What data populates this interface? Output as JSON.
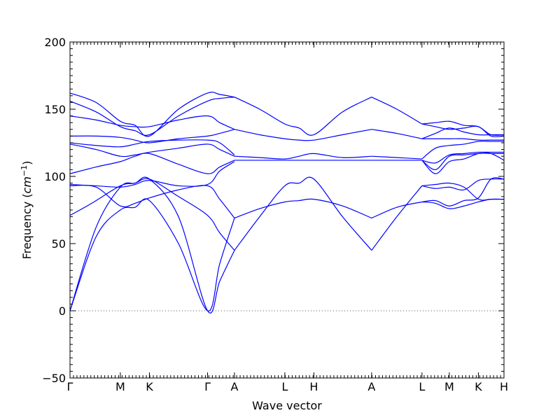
{
  "chart_data": {
    "type": "line",
    "xlabel": "Wave vector",
    "ylabel_main": "Frequency (",
    "ylabel_unit_base": "cm",
    "ylabel_unit_exp": "−1",
    "ylabel_close": ")",
    "xlim": [
      0,
      100
    ],
    "ylim": [
      -50,
      200
    ],
    "ytick_values": [
      -50,
      0,
      50,
      100,
      150,
      200
    ],
    "ytick_labels": [
      "−50",
      "0",
      "50",
      "100",
      "150",
      "200"
    ],
    "xticks": [
      {
        "label": "Γ",
        "x": 0
      },
      {
        "label": "M",
        "x": 11.6
      },
      {
        "label": "K",
        "x": 18.3
      },
      {
        "label": "Γ",
        "x": 31.7
      },
      {
        "label": "A",
        "x": 37.9
      },
      {
        "label": "L",
        "x": 49.5
      },
      {
        "label": "H",
        "x": 56.2
      },
      {
        "label": "A",
        "x": 69.5
      },
      {
        "label": "L",
        "x": 81.1
      },
      {
        "label": "M",
        "x": 87.4
      },
      {
        "label": "K",
        "x": 94.1
      },
      {
        "label": "H",
        "x": 100
      }
    ],
    "zero_line": true,
    "line_color": "#0000ff",
    "series": [
      {
        "x": [
          0,
          6,
          11.6,
          15,
          18.3,
          25,
          31.7,
          34.5,
          37.9
        ],
        "y": [
          0,
          62,
          92,
          95,
          98,
          70,
          0,
          22,
          45
        ]
      },
      {
        "x": [
          0,
          6,
          11.6,
          15,
          18.3,
          25,
          31.7,
          34.5,
          37.9
        ],
        "y": [
          0,
          55,
          75,
          77,
          82,
          50,
          0,
          35,
          69
        ]
      },
      {
        "x": [
          0,
          5,
          11.6,
          15,
          18.3,
          25,
          31.7,
          34.5,
          37.9
        ],
        "y": [
          71,
          80,
          93,
          95,
          98,
          85,
          71,
          58,
          45
        ]
      },
      {
        "x": [
          0,
          6,
          11.6,
          15,
          18.3,
          25,
          31.7,
          34.5,
          37.9
        ],
        "y": [
          93,
          92,
          78,
          80,
          84,
          90,
          93,
          83,
          69
        ]
      },
      {
        "x": [
          0,
          6,
          11.6,
          15,
          18.3,
          25,
          31.7,
          34.5,
          37.9
        ],
        "y": [
          94,
          93,
          92,
          94,
          97,
          93,
          94,
          104,
          111
        ]
      },
      {
        "x": [
          0,
          6,
          11.6,
          15,
          18.3,
          25,
          31.7,
          34.5,
          37.9
        ],
        "y": [
          102,
          107,
          111,
          115,
          117,
          109,
          102,
          107,
          112
        ]
      },
      {
        "x": [
          0,
          6,
          11.6,
          15,
          18.3,
          25,
          31.7,
          34.5,
          37.9
        ],
        "y": [
          124,
          120,
          115,
          116,
          118,
          121,
          124,
          120,
          115
        ]
      },
      {
        "x": [
          0,
          6,
          11.6,
          15,
          18.3,
          25,
          31.7,
          34.5,
          37.9
        ],
        "y": [
          125,
          123,
          122,
          124,
          126,
          127,
          127,
          125,
          116
        ]
      },
      {
        "x": [
          0,
          6,
          11.6,
          15,
          18.3,
          25,
          31.7,
          34.5,
          37.9
        ],
        "y": [
          130,
          130,
          129,
          127,
          125,
          128,
          130,
          132,
          135
        ]
      },
      {
        "x": [
          0,
          6,
          11.6,
          15,
          18.3,
          25,
          31.7,
          34.5,
          37.9
        ],
        "y": [
          145,
          142,
          138,
          137,
          137,
          142,
          145,
          140,
          135
        ]
      },
      {
        "x": [
          0,
          6,
          11.6,
          15,
          18.3,
          25,
          31.7,
          34.5,
          37.9
        ],
        "y": [
          156,
          148,
          137,
          134,
          131,
          145,
          156,
          158,
          159
        ]
      },
      {
        "x": [
          0,
          6,
          11.6,
          15,
          18.3,
          25,
          31.7,
          34.5,
          37.9
        ],
        "y": [
          162,
          155,
          141,
          138,
          130,
          150,
          162,
          161,
          159
        ]
      },
      {
        "x": [
          37.9,
          43.7,
          49.5,
          52.8,
          56.2,
          62.8,
          69.5
        ],
        "y": [
          45,
          70,
          93,
          95,
          98,
          70,
          45
        ]
      },
      {
        "x": [
          37.9,
          43.7,
          49.5,
          52.8,
          56.2,
          62.8,
          69.5
        ],
        "y": [
          69,
          76,
          81,
          82,
          83,
          78,
          69
        ]
      },
      {
        "x": [
          37.9,
          43.7,
          49.5,
          52.8,
          56.2,
          62.8,
          69.5
        ],
        "y": [
          112,
          112,
          112,
          112,
          112,
          112,
          112
        ]
      },
      {
        "x": [
          37.9,
          43.7,
          49.5,
          52.8,
          56.2,
          62.8,
          69.5
        ],
        "y": [
          115,
          114,
          113,
          115,
          117,
          114,
          115
        ]
      },
      {
        "x": [
          37.9,
          43.7,
          49.5,
          52.8,
          56.2,
          62.8,
          69.5
        ],
        "y": [
          135,
          131,
          128,
          127,
          127,
          131,
          135
        ]
      },
      {
        "x": [
          37.9,
          43.7,
          49.5,
          52.8,
          56.2,
          62.8,
          69.5
        ],
        "y": [
          159,
          150,
          139,
          136,
          131,
          148,
          159
        ]
      },
      {
        "x": [
          69.5,
          75.3,
          81.1
        ],
        "y": [
          45,
          70,
          93
        ]
      },
      {
        "x": [
          69.5,
          75.3,
          81.1
        ],
        "y": [
          69,
          77,
          81
        ]
      },
      {
        "x": [
          69.5,
          75.3,
          81.1
        ],
        "y": [
          112,
          112,
          112
        ]
      },
      {
        "x": [
          69.5,
          75.3,
          81.1
        ],
        "y": [
          115,
          114,
          113
        ]
      },
      {
        "x": [
          69.5,
          75.3,
          81.1
        ],
        "y": [
          135,
          132,
          128
        ]
      },
      {
        "x": [
          69.5,
          75.3,
          81.1
        ],
        "y": [
          159,
          150,
          139
        ]
      },
      {
        "x": [
          81.1,
          84.2,
          87.4,
          90.8,
          94.1,
          97,
          100
        ],
        "y": [
          93,
          94,
          95,
          92,
          83,
          83,
          83
        ]
      },
      {
        "x": [
          81.1,
          84.2,
          87.4,
          90.8,
          94.1,
          97,
          100
        ],
        "y": [
          81,
          80,
          76,
          78,
          81,
          83,
          83
        ]
      },
      {
        "x": [
          81.1,
          84.2,
          87.4,
          90.8,
          94.1,
          97,
          100
        ],
        "y": [
          81,
          82,
          78,
          82,
          84,
          98,
          98
        ]
      },
      {
        "x": [
          81.1,
          84.2,
          87.4,
          90.8,
          94.1,
          97,
          100
        ],
        "y": [
          93,
          91,
          92,
          90,
          97,
          98,
          98
        ]
      },
      {
        "x": [
          81.1,
          84.2,
          87.4,
          90.8,
          94.1,
          97,
          100
        ],
        "y": [
          112,
          102,
          111,
          113,
          117,
          117,
          117
        ]
      },
      {
        "x": [
          81.1,
          84.2,
          87.4,
          90.8,
          94.1,
          97,
          100
        ],
        "y": [
          113,
          121,
          123,
          124,
          126,
          126,
          126
        ]
      },
      {
        "x": [
          81.1,
          84.2,
          87.4,
          90.8,
          94.1,
          97,
          100
        ],
        "y": [
          128,
          132,
          136,
          133,
          131,
          131,
          131
        ]
      },
      {
        "x": [
          81.1,
          84.2,
          87.4,
          90.8,
          94.1,
          97,
          100
        ],
        "y": [
          139,
          140,
          141,
          138,
          137,
          131,
          131
        ]
      },
      {
        "x": [
          81.1,
          84.2,
          87.4,
          90.8,
          94.1,
          97,
          100
        ],
        "y": [
          139,
          137,
          135,
          136,
          137,
          130,
          130
        ]
      },
      {
        "x": [
          81.1,
          84.2,
          87.4,
          90.8,
          94.1,
          97,
          100
        ],
        "y": [
          112,
          110,
          116,
          117,
          118,
          118,
          118
        ]
      },
      {
        "x": [
          81.1,
          84.2,
          87.4,
          90.8,
          94.1,
          97,
          100
        ],
        "y": [
          112,
          105,
          115,
          116,
          117,
          117,
          112
        ]
      },
      {
        "x": [
          81.1,
          84.2,
          87.4,
          90.8,
          94.1,
          97,
          100
        ],
        "y": [
          128,
          128,
          128,
          128,
          127,
          127,
          127
        ]
      }
    ]
  }
}
